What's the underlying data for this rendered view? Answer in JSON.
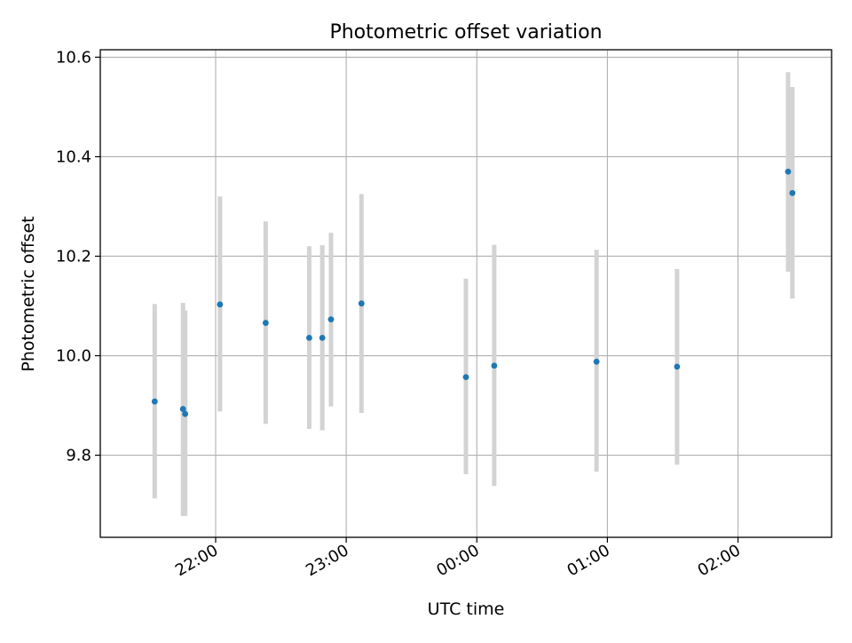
{
  "chart_data": {
    "type": "scatter",
    "title": "Photometric offset variation",
    "xlabel": "UTC time",
    "ylabel": "Photometric offset",
    "x_axis_type": "time",
    "xlim": [
      "21:07",
      "02:43"
    ],
    "ylim": [
      9.635,
      10.615
    ],
    "xticks": [
      "22:00",
      "23:00",
      "00:00",
      "01:00",
      "02:00"
    ],
    "yticks": [
      9.8,
      10.0,
      10.2,
      10.4,
      10.6
    ],
    "ytick_labels": [
      "9.8",
      "10.0",
      "10.2",
      "10.4",
      "10.6"
    ],
    "grid": true,
    "legend": "none",
    "marker_color": "#1f77b4",
    "errorbar_color": "#d3d3d3",
    "points": [
      {
        "t": "21:32",
        "y": 9.908,
        "low": 9.713,
        "high": 10.104
      },
      {
        "t": "21:45",
        "y": 9.893,
        "low": 9.678,
        "high": 10.106
      },
      {
        "t": "21:46",
        "y": 9.883,
        "low": 9.678,
        "high": 10.091
      },
      {
        "t": "22:02",
        "y": 10.103,
        "low": 9.888,
        "high": 10.32
      },
      {
        "t": "22:23",
        "y": 10.066,
        "low": 9.863,
        "high": 10.27
      },
      {
        "t": "22:43",
        "y": 10.036,
        "low": 9.853,
        "high": 10.22
      },
      {
        "t": "22:49",
        "y": 10.036,
        "low": 9.85,
        "high": 10.222
      },
      {
        "t": "22:53",
        "y": 10.073,
        "low": 9.898,
        "high": 10.247
      },
      {
        "t": "23:07",
        "y": 10.105,
        "low": 9.885,
        "high": 10.325
      },
      {
        "t": "23:55",
        "y": 9.957,
        "low": 9.762,
        "high": 10.155
      },
      {
        "t": "00:08",
        "y": 9.98,
        "low": 9.738,
        "high": 10.223
      },
      {
        "t": "00:55",
        "y": 9.988,
        "low": 9.767,
        "high": 10.213
      },
      {
        "t": "01:32",
        "y": 9.978,
        "low": 9.781,
        "high": 10.174
      },
      {
        "t": "02:23",
        "y": 10.37,
        "low": 10.169,
        "high": 10.57
      },
      {
        "t": "02:25",
        "y": 10.327,
        "low": 10.115,
        "high": 10.54
      }
    ]
  }
}
